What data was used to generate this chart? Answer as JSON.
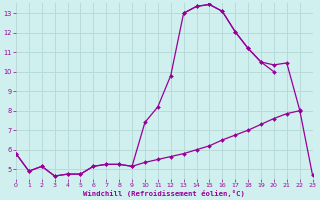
{
  "xlabel": "Windchill (Refroidissement éolien,°C)",
  "bg_color": "#cff0ee",
  "grid_color": "#b8dbd9",
  "line_color": "#990099",
  "xlim": [
    0,
    23
  ],
  "ylim": [
    4.5,
    13.5
  ],
  "yticks": [
    5,
    6,
    7,
    8,
    9,
    10,
    11,
    12,
    13
  ],
  "xticks": [
    0,
    1,
    2,
    3,
    4,
    5,
    6,
    7,
    8,
    9,
    10,
    11,
    12,
    13,
    14,
    15,
    16,
    17,
    18,
    19,
    20,
    21,
    22,
    23
  ],
  "curve1_x": [
    0,
    1,
    2,
    3,
    4,
    5,
    6,
    7,
    8,
    9,
    10,
    11,
    12,
    13,
    14,
    15,
    16,
    17,
    18,
    19,
    20
  ],
  "curve1_y": [
    5.8,
    4.9,
    5.15,
    4.65,
    4.75,
    4.75,
    5.15,
    5.25,
    5.25,
    5.15,
    7.4,
    8.2,
    9.8,
    13.0,
    13.35,
    13.45,
    13.1,
    12.05,
    11.2,
    10.5,
    10.0
  ],
  "curve2_x": [
    0,
    1,
    2,
    3,
    4,
    5,
    6,
    7,
    8,
    9,
    10,
    11,
    12,
    13,
    14,
    15,
    16,
    17,
    18,
    19,
    20,
    21,
    22
  ],
  "curve2_y": [
    5.8,
    4.9,
    5.15,
    4.65,
    4.75,
    4.75,
    5.15,
    5.25,
    5.25,
    5.15,
    5.35,
    5.5,
    5.65,
    5.8,
    6.0,
    6.2,
    6.5,
    6.75,
    7.0,
    7.3,
    7.6,
    7.85,
    8.0
  ],
  "curve3_x": [
    13,
    14,
    15,
    16,
    17,
    18,
    19,
    20,
    21,
    22,
    23
  ],
  "curve3_y": [
    13.0,
    13.35,
    13.45,
    13.1,
    12.05,
    11.2,
    10.5,
    10.35,
    10.45,
    8.05,
    4.7
  ]
}
